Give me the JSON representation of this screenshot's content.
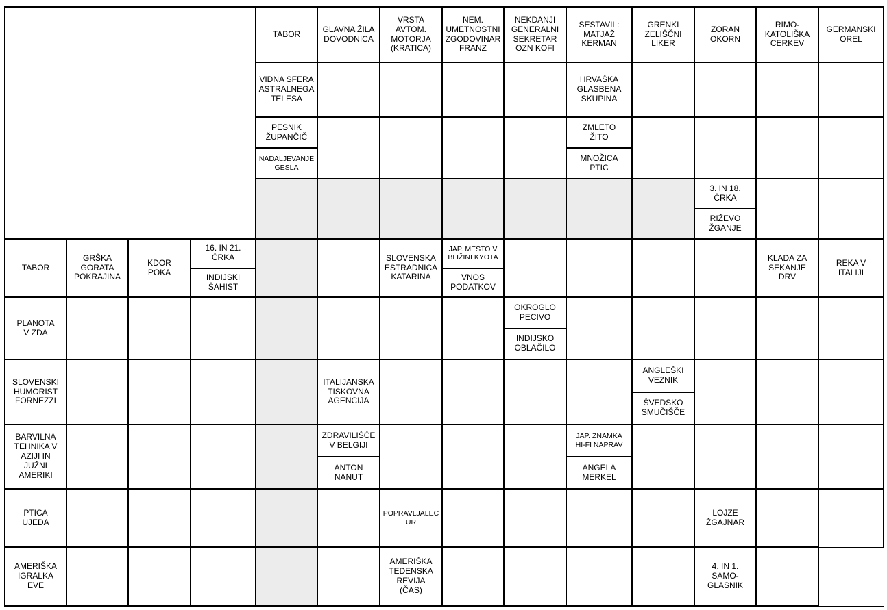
{
  "page": {
    "background": "#ffffff"
  },
  "style": {
    "grid_line_color": "#000000",
    "shaded_cell_color": "#ececec",
    "text_color": "#000000"
  },
  "grid": {
    "columns": 14,
    "rows": [
      {
        "cells": [
          {
            "col": 1,
            "colspan": 4,
            "rowspan": 4,
            "type": "blank"
          },
          {
            "col": 5,
            "type": "clue",
            "text": "TABOR"
          },
          {
            "col": 6,
            "type": "clue",
            "text": "GLAVNA ŽILA\nDOVODNICA"
          },
          {
            "col": 7,
            "type": "clue",
            "text": "VRSTA\nAVTOM.\nMOTORJA\n(KRATICA)"
          },
          {
            "col": 8,
            "type": "clue",
            "text": "NEM.\nUMETNOSTNI\nZGODOVINAR\nFRANZ"
          },
          {
            "col": 9,
            "type": "clue",
            "text": "NEKDANJI\nGENERALNI\nSEKRETAR\nOZN KOFI"
          },
          {
            "col": 10,
            "type": "clue",
            "text": "SESTAVIL:\nMATJAŽ\nKERMAN"
          },
          {
            "col": 11,
            "type": "clue",
            "text": "GRENKI\nZELIŠČNI\nLIKER"
          },
          {
            "col": 12,
            "type": "clue",
            "text": "ZORAN\nOKORN"
          },
          {
            "col": 13,
            "type": "clue",
            "text": "RIMO-\nKATOLIŠKA\nCERKEV"
          },
          {
            "col": 14,
            "type": "clue",
            "text": "GERMANSKI\nOREL"
          }
        ]
      },
      {
        "cells": [
          {
            "col": 5,
            "type": "clue",
            "text": "VIDNA SFERA\nASTRALNEGA\nTELESA"
          },
          {
            "col": 6,
            "type": "empty"
          },
          {
            "col": 7,
            "type": "empty"
          },
          {
            "col": 8,
            "type": "empty"
          },
          {
            "col": 9,
            "type": "empty"
          },
          {
            "col": 10,
            "type": "clue",
            "text": "HRVAŠKA\nGLASBENA\nSKUPINA"
          },
          {
            "col": 11,
            "type": "empty"
          },
          {
            "col": 12,
            "type": "empty"
          },
          {
            "col": 13,
            "type": "empty"
          },
          {
            "col": 14,
            "type": "empty"
          }
        ]
      },
      {
        "cells": [
          {
            "col": 5,
            "type": "split",
            "top": "PESNIK\nŽUPANČIČ",
            "bottom": "NADALJEVANJE\nGESLA",
            "small_bottom": true
          },
          {
            "col": 6,
            "type": "empty"
          },
          {
            "col": 7,
            "type": "empty"
          },
          {
            "col": 8,
            "type": "empty"
          },
          {
            "col": 9,
            "type": "empty"
          },
          {
            "col": 10,
            "type": "split",
            "top": "ZMLETO\nŽITO",
            "bottom": "MNOŽICA\nPTIC"
          },
          {
            "col": 11,
            "type": "empty"
          },
          {
            "col": 12,
            "type": "empty"
          },
          {
            "col": 13,
            "type": "empty"
          },
          {
            "col": 14,
            "type": "empty"
          }
        ]
      },
      {
        "cells": [
          {
            "col": 5,
            "type": "shaded"
          },
          {
            "col": 6,
            "type": "shaded"
          },
          {
            "col": 7,
            "type": "shaded"
          },
          {
            "col": 8,
            "type": "shaded"
          },
          {
            "col": 9,
            "type": "shaded"
          },
          {
            "col": 10,
            "type": "shaded"
          },
          {
            "col": 11,
            "type": "shaded"
          },
          {
            "col": 12,
            "type": "split",
            "top": "3. IN 18.\nČRKA",
            "bottom": "RIŽEVO\nŽGANJE"
          },
          {
            "col": 13,
            "type": "empty"
          },
          {
            "col": 14,
            "type": "empty"
          }
        ]
      },
      {
        "cells": [
          {
            "col": 1,
            "type": "clue",
            "text": "TABOR"
          },
          {
            "col": 2,
            "type": "clue",
            "text": "GRŠKA\nGORATA\nPOKRAJINA"
          },
          {
            "col": 3,
            "type": "clue",
            "text": "KDOR\nPOKA"
          },
          {
            "col": 4,
            "type": "split",
            "top": "16. IN 21.\nČRKA",
            "bottom": "INDIJSKI\nŠAHIST"
          },
          {
            "col": 5,
            "type": "shaded"
          },
          {
            "col": 6,
            "type": "empty"
          },
          {
            "col": 7,
            "type": "clue",
            "text": "SLOVENSKA\nESTRADNICA\nKATARINA"
          },
          {
            "col": 8,
            "type": "split",
            "top": "JAP. MESTO V\nBLIŽINI KYOTA",
            "bottom": "VNOS\nPODATKOV",
            "small_top": true
          },
          {
            "col": 9,
            "type": "empty"
          },
          {
            "col": 10,
            "type": "empty"
          },
          {
            "col": 11,
            "type": "empty"
          },
          {
            "col": 12,
            "type": "empty"
          },
          {
            "col": 13,
            "type": "clue",
            "text": "KLADA ZA\nSEKANJE\nDRV"
          },
          {
            "col": 14,
            "type": "clue",
            "text": "REKA V\nITALIJI"
          }
        ]
      },
      {
        "cells": [
          {
            "col": 1,
            "type": "clue",
            "text": "PLANOTA\nV ZDA"
          },
          {
            "col": 2,
            "type": "empty"
          },
          {
            "col": 3,
            "type": "empty"
          },
          {
            "col": 4,
            "type": "empty"
          },
          {
            "col": 5,
            "type": "shaded"
          },
          {
            "col": 6,
            "type": "empty"
          },
          {
            "col": 7,
            "type": "empty"
          },
          {
            "col": 8,
            "type": "empty"
          },
          {
            "col": 9,
            "type": "split",
            "top": "OKROGLO\nPECIVO",
            "bottom": "INDIJSKO\nOBLAČILO"
          },
          {
            "col": 10,
            "type": "empty"
          },
          {
            "col": 11,
            "type": "empty"
          },
          {
            "col": 12,
            "type": "empty"
          },
          {
            "col": 13,
            "type": "empty"
          },
          {
            "col": 14,
            "type": "empty"
          }
        ]
      },
      {
        "cells": [
          {
            "col": 1,
            "type": "clue",
            "text": "SLOVENSKI\nHUMORIST\nFORNEZZI"
          },
          {
            "col": 2,
            "type": "empty"
          },
          {
            "col": 3,
            "type": "empty"
          },
          {
            "col": 4,
            "type": "empty"
          },
          {
            "col": 5,
            "type": "shaded"
          },
          {
            "col": 6,
            "type": "clue",
            "text": "ITALIJANSKA\nTISKOVNA\nAGENCIJA"
          },
          {
            "col": 7,
            "type": "empty"
          },
          {
            "col": 8,
            "type": "empty"
          },
          {
            "col": 9,
            "type": "empty"
          },
          {
            "col": 10,
            "type": "empty"
          },
          {
            "col": 11,
            "type": "split",
            "top": "ANGLEŠKI\nVEZNIK",
            "bottom": "ŠVEDSKO\nSMUČIŠČE"
          },
          {
            "col": 12,
            "type": "empty"
          },
          {
            "col": 13,
            "type": "empty"
          },
          {
            "col": 14,
            "type": "empty"
          }
        ]
      },
      {
        "cells": [
          {
            "col": 1,
            "type": "clue",
            "text": "BARVILNA\nTEHNIKA V\nAZIJI IN\nJUŽNI\nAMERIKI"
          },
          {
            "col": 2,
            "type": "empty"
          },
          {
            "col": 3,
            "type": "empty"
          },
          {
            "col": 4,
            "type": "empty"
          },
          {
            "col": 5,
            "type": "shaded"
          },
          {
            "col": 6,
            "type": "split",
            "top": "ZDRAVILIŠČE\nV BELGIJI",
            "bottom": "ANTON\nNANUT"
          },
          {
            "col": 7,
            "type": "empty"
          },
          {
            "col": 8,
            "type": "empty"
          },
          {
            "col": 9,
            "type": "empty"
          },
          {
            "col": 10,
            "type": "split",
            "top": "JAP. ZNAMKA\nHI-FI NAPRAV",
            "bottom": "ANGELA\nMERKEL",
            "small_top": true
          },
          {
            "col": 11,
            "type": "empty"
          },
          {
            "col": 12,
            "type": "empty"
          },
          {
            "col": 13,
            "type": "empty"
          },
          {
            "col": 14,
            "type": "empty"
          }
        ]
      },
      {
        "cells": [
          {
            "col": 1,
            "type": "clue",
            "text": "PTICA\nUJEDA"
          },
          {
            "col": 2,
            "type": "empty"
          },
          {
            "col": 3,
            "type": "empty"
          },
          {
            "col": 4,
            "type": "empty"
          },
          {
            "col": 5,
            "type": "shaded"
          },
          {
            "col": 6,
            "type": "empty"
          },
          {
            "col": 7,
            "type": "clue",
            "text": "POPRAVLJALEC\nUR",
            "small": true
          },
          {
            "col": 8,
            "type": "empty"
          },
          {
            "col": 9,
            "type": "empty"
          },
          {
            "col": 10,
            "type": "empty"
          },
          {
            "col": 11,
            "type": "empty"
          },
          {
            "col": 12,
            "type": "clue",
            "text": "LOJZE\nŽGAJNAR"
          },
          {
            "col": 13,
            "type": "empty"
          },
          {
            "col": 14,
            "type": "empty",
            "edge": "thin-bottom"
          }
        ]
      },
      {
        "cells": [
          {
            "col": 1,
            "type": "clue",
            "text": "AMERIŠKA\nIGRALKA\nEVE"
          },
          {
            "col": 2,
            "type": "empty"
          },
          {
            "col": 3,
            "type": "empty"
          },
          {
            "col": 4,
            "type": "empty"
          },
          {
            "col": 5,
            "type": "shaded"
          },
          {
            "col": 6,
            "type": "empty"
          },
          {
            "col": 7,
            "type": "clue",
            "text": "AMERIŠKA\nTEDENSKA\nREVIJA\n(ČAS)"
          },
          {
            "col": 8,
            "type": "empty"
          },
          {
            "col": 9,
            "type": "empty"
          },
          {
            "col": 10,
            "type": "empty"
          },
          {
            "col": 11,
            "type": "empty"
          },
          {
            "col": 12,
            "type": "clue",
            "text": "4. IN 1.\nSAMO-\nGLASNIK"
          },
          {
            "col": 13,
            "type": "empty",
            "edge": "thin-right"
          },
          {
            "col": 14,
            "type": "outside"
          }
        ]
      }
    ]
  }
}
